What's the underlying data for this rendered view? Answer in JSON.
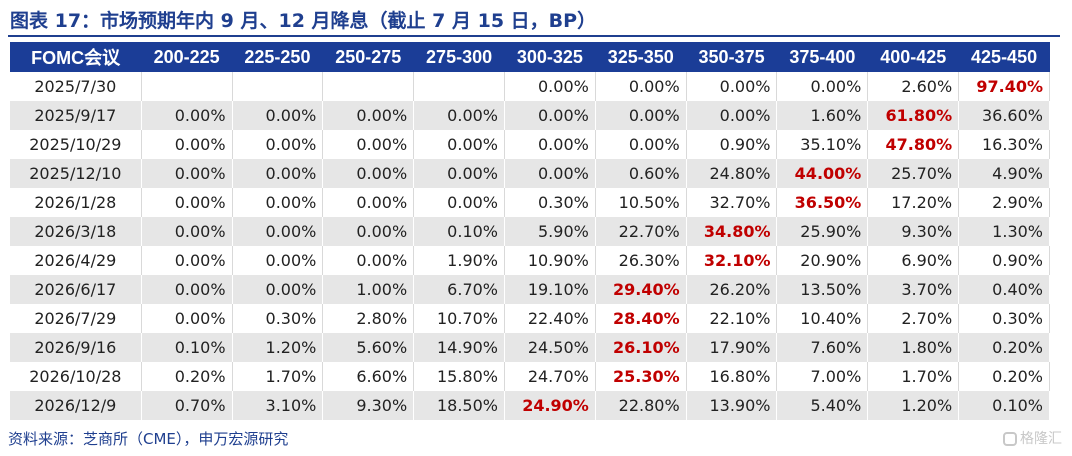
{
  "title": "图表 17：市场预期年内 9 月、12 月降息（截止 7 月 15 日，BP）",
  "table": {
    "headers": [
      "FOMC会议",
      "200-225",
      "225-250",
      "250-275",
      "275-300",
      "300-325",
      "325-350",
      "350-375",
      "375-400",
      "400-425",
      "425-450"
    ],
    "rows": [
      {
        "cells": [
          "2025/7/30",
          "",
          "",
          "",
          "",
          "0.00%",
          "0.00%",
          "0.00%",
          "0.00%",
          "2.60%",
          "97.40%"
        ],
        "highlight": 10
      },
      {
        "cells": [
          "2025/9/17",
          "0.00%",
          "0.00%",
          "0.00%",
          "0.00%",
          "0.00%",
          "0.00%",
          "0.00%",
          "1.60%",
          "61.80%",
          "36.60%"
        ],
        "highlight": 9
      },
      {
        "cells": [
          "2025/10/29",
          "0.00%",
          "0.00%",
          "0.00%",
          "0.00%",
          "0.00%",
          "0.00%",
          "0.90%",
          "35.10%",
          "47.80%",
          "16.30%"
        ],
        "highlight": 9
      },
      {
        "cells": [
          "2025/12/10",
          "0.00%",
          "0.00%",
          "0.00%",
          "0.00%",
          "0.00%",
          "0.60%",
          "24.80%",
          "44.00%",
          "25.70%",
          "4.90%"
        ],
        "highlight": 8
      },
      {
        "cells": [
          "2026/1/28",
          "0.00%",
          "0.00%",
          "0.00%",
          "0.00%",
          "0.30%",
          "10.50%",
          "32.70%",
          "36.50%",
          "17.20%",
          "2.90%"
        ],
        "highlight": 8
      },
      {
        "cells": [
          "2026/3/18",
          "0.00%",
          "0.00%",
          "0.00%",
          "0.10%",
          "5.90%",
          "22.70%",
          "34.80%",
          "25.90%",
          "9.30%",
          "1.30%"
        ],
        "highlight": 7
      },
      {
        "cells": [
          "2026/4/29",
          "0.00%",
          "0.00%",
          "0.00%",
          "1.90%",
          "10.90%",
          "26.30%",
          "32.10%",
          "20.90%",
          "6.90%",
          "0.90%"
        ],
        "highlight": 7
      },
      {
        "cells": [
          "2026/6/17",
          "0.00%",
          "0.00%",
          "1.00%",
          "6.70%",
          "19.10%",
          "29.40%",
          "26.20%",
          "13.50%",
          "3.70%",
          "0.40%"
        ],
        "highlight": 6
      },
      {
        "cells": [
          "2026/7/29",
          "0.00%",
          "0.30%",
          "2.80%",
          "10.70%",
          "22.40%",
          "28.40%",
          "22.10%",
          "10.40%",
          "2.70%",
          "0.30%"
        ],
        "highlight": 6
      },
      {
        "cells": [
          "2026/9/16",
          "0.10%",
          "1.20%",
          "5.60%",
          "14.90%",
          "24.50%",
          "26.10%",
          "17.90%",
          "7.60%",
          "1.80%",
          "0.20%"
        ],
        "highlight": 6
      },
      {
        "cells": [
          "2026/10/28",
          "0.20%",
          "1.70%",
          "6.60%",
          "15.80%",
          "24.70%",
          "25.30%",
          "16.80%",
          "7.00%",
          "1.70%",
          "0.20%"
        ],
        "highlight": 6
      },
      {
        "cells": [
          "2026/12/9",
          "0.70%",
          "3.10%",
          "9.30%",
          "18.50%",
          "24.90%",
          "22.80%",
          "13.90%",
          "5.40%",
          "1.20%",
          "0.10%"
        ],
        "highlight": 5
      }
    ]
  },
  "source": "资料来源：芝商所（CME），申万宏源研究",
  "watermark": "格隆汇",
  "colors": {
    "header_bg": "#1b3d97",
    "title": "#1f3f8f",
    "highlight": "#c00000",
    "stripe": "#e6e6e6"
  }
}
